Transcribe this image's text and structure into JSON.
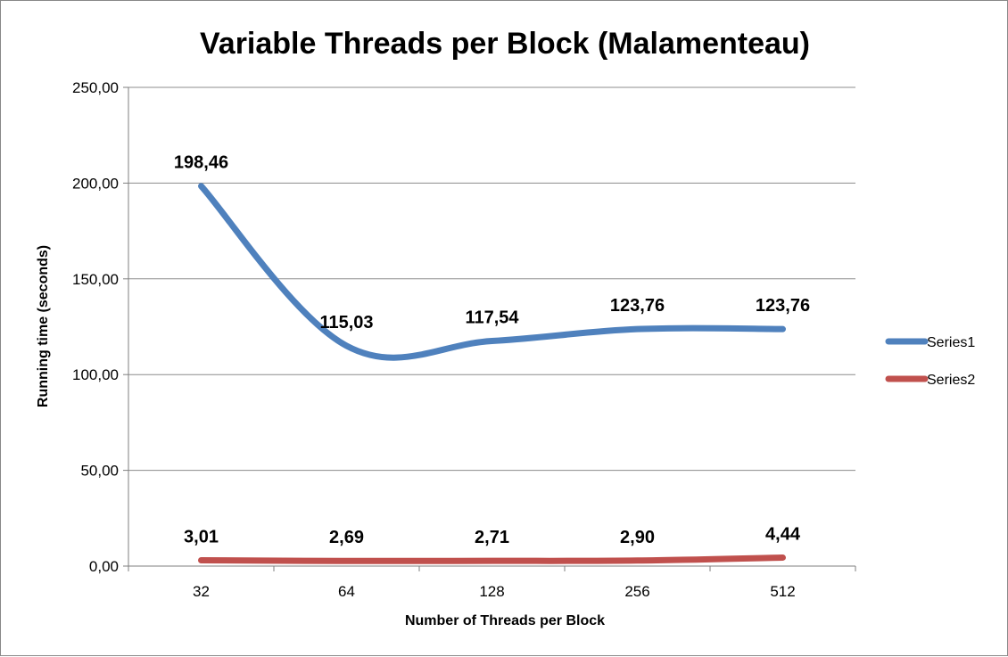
{
  "chart_data": {
    "type": "line",
    "title": "Variable Threads per Block (Malamenteau)",
    "xlabel": "Number of Threads per Block",
    "ylabel": "Running time (seconds)",
    "categories": [
      "32",
      "64",
      "128",
      "256",
      "512"
    ],
    "ylim": [
      0,
      250
    ],
    "yticks": [
      0,
      50,
      100,
      150,
      200,
      250
    ],
    "ytick_labels": [
      "0,00",
      "50,00",
      "100,00",
      "150,00",
      "200,00",
      "250,00"
    ],
    "grid": true,
    "legend_position": "right",
    "series": [
      {
        "name": "Series1",
        "color": "#4F81BD",
        "values": [
          198.46,
          115.03,
          117.54,
          123.76,
          123.76
        ],
        "labels": [
          "198,46",
          "115,03",
          "117,54",
          "123,76",
          "123,76"
        ]
      },
      {
        "name": "Series2",
        "color": "#C0504D",
        "values": [
          3.01,
          2.69,
          2.71,
          2.9,
          4.44
        ],
        "labels": [
          "3,01",
          "2,69",
          "2,71",
          "2,90",
          "4,44"
        ]
      }
    ]
  }
}
